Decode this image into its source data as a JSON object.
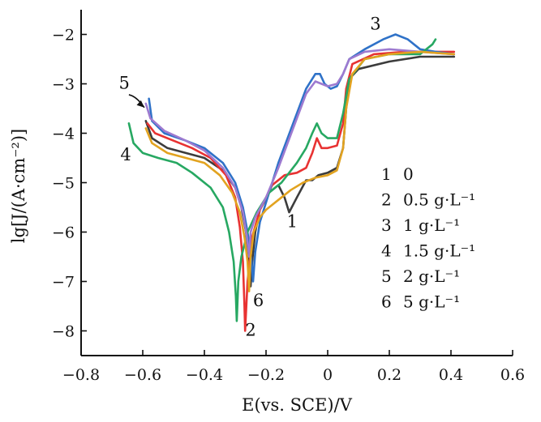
{
  "chart_data": {
    "type": "line",
    "title": "",
    "xlabel": "E(vs. SCE)/V",
    "ylabel": "lg[J/(A·cm⁻²)]",
    "xlim": [
      -0.8,
      0.6
    ],
    "ylim": [
      -8.5,
      -1.5
    ],
    "xticks": [
      -0.8,
      -0.6,
      -0.4,
      -0.2,
      0,
      0.2,
      0.4,
      0.6
    ],
    "xtick_labels": [
      "−0.8",
      "−0.6",
      "−0.4",
      "−0.2",
      "0",
      "0.2",
      "0.4",
      "0.6"
    ],
    "yticks": [
      -2,
      -3,
      -4,
      -5,
      -6,
      -7,
      -8
    ],
    "ytick_labels": [
      "−2",
      "−3",
      "−4",
      "−5",
      "−6",
      "−7",
      "−8"
    ],
    "grid": false,
    "legend": {
      "position": "right",
      "entries": [
        {
          "number": "1",
          "text": "0"
        },
        {
          "number": "2",
          "text": "0.5 g·L⁻¹"
        },
        {
          "number": "3",
          "text": "1 g·L⁻¹"
        },
        {
          "number": "4",
          "text": "1.5 g·L⁻¹"
        },
        {
          "number": "5",
          "text": "2 g·L⁻¹"
        },
        {
          "number": "6",
          "text": "5 g·L⁻¹"
        }
      ]
    },
    "series": [
      {
        "label": "1",
        "color": "#3c3c3c",
        "points": [
          [
            -0.59,
            -3.75
          ],
          [
            -0.57,
            -4.1
          ],
          [
            -0.52,
            -4.3
          ],
          [
            -0.46,
            -4.4
          ],
          [
            -0.4,
            -4.5
          ],
          [
            -0.34,
            -4.75
          ],
          [
            -0.3,
            -5.1
          ],
          [
            -0.28,
            -5.5
          ],
          [
            -0.265,
            -6.0
          ],
          [
            -0.255,
            -6.6
          ],
          [
            -0.25,
            -7.1
          ],
          [
            -0.245,
            -6.6
          ],
          [
            -0.235,
            -6.0
          ],
          [
            -0.22,
            -5.55
          ],
          [
            -0.19,
            -5.2
          ],
          [
            -0.16,
            -5.05
          ],
          [
            -0.14,
            -5.3
          ],
          [
            -0.125,
            -5.6
          ],
          [
            -0.1,
            -5.3
          ],
          [
            -0.07,
            -4.95
          ],
          [
            -0.05,
            -4.95
          ],
          [
            -0.03,
            -4.85
          ],
          [
            0,
            -4.8
          ],
          [
            0.03,
            -4.7
          ],
          [
            0.05,
            -4.3
          ],
          [
            0.06,
            -3.5
          ],
          [
            0.07,
            -2.9
          ],
          [
            0.1,
            -2.7
          ],
          [
            0.2,
            -2.55
          ],
          [
            0.3,
            -2.45
          ],
          [
            0.41,
            -2.45
          ]
        ]
      },
      {
        "label": "2",
        "color": "#e83232",
        "points": [
          [
            -0.585,
            -3.8
          ],
          [
            -0.56,
            -4.0
          ],
          [
            -0.5,
            -4.15
          ],
          [
            -0.44,
            -4.3
          ],
          [
            -0.38,
            -4.5
          ],
          [
            -0.33,
            -4.85
          ],
          [
            -0.3,
            -5.3
          ],
          [
            -0.285,
            -5.9
          ],
          [
            -0.275,
            -6.6
          ],
          [
            -0.27,
            -7.5
          ],
          [
            -0.268,
            -8.0
          ],
          [
            -0.26,
            -7.0
          ],
          [
            -0.245,
            -6.1
          ],
          [
            -0.22,
            -5.55
          ],
          [
            -0.18,
            -5.05
          ],
          [
            -0.14,
            -4.85
          ],
          [
            -0.1,
            -4.8
          ],
          [
            -0.07,
            -4.7
          ],
          [
            -0.05,
            -4.4
          ],
          [
            -0.035,
            -4.1
          ],
          [
            -0.02,
            -4.3
          ],
          [
            0,
            -4.3
          ],
          [
            0.03,
            -4.25
          ],
          [
            0.05,
            -3.8
          ],
          [
            0.06,
            -3.1
          ],
          [
            0.08,
            -2.6
          ],
          [
            0.15,
            -2.4
          ],
          [
            0.25,
            -2.35
          ],
          [
            0.41,
            -2.35
          ]
        ]
      },
      {
        "label": "3",
        "color": "#2f72c8",
        "points": [
          [
            -0.58,
            -3.3
          ],
          [
            -0.57,
            -3.75
          ],
          [
            -0.53,
            -4.0
          ],
          [
            -0.46,
            -4.15
          ],
          [
            -0.4,
            -4.3
          ],
          [
            -0.34,
            -4.6
          ],
          [
            -0.3,
            -5.0
          ],
          [
            -0.275,
            -5.5
          ],
          [
            -0.26,
            -6.0
          ],
          [
            -0.247,
            -6.6
          ],
          [
            -0.242,
            -7.0
          ],
          [
            -0.235,
            -6.4
          ],
          [
            -0.22,
            -5.8
          ],
          [
            -0.19,
            -5.2
          ],
          [
            -0.16,
            -4.6
          ],
          [
            -0.13,
            -4.1
          ],
          [
            -0.1,
            -3.6
          ],
          [
            -0.07,
            -3.1
          ],
          [
            -0.04,
            -2.8
          ],
          [
            -0.025,
            -2.8
          ],
          [
            -0.01,
            -3.0
          ],
          [
            0.01,
            -3.1
          ],
          [
            0.03,
            -3.05
          ],
          [
            0.05,
            -2.8
          ],
          [
            0.07,
            -2.5
          ],
          [
            0.12,
            -2.3
          ],
          [
            0.18,
            -2.1
          ],
          [
            0.22,
            -2.0
          ],
          [
            0.26,
            -2.1
          ],
          [
            0.3,
            -2.3
          ],
          [
            0.35,
            -2.35
          ],
          [
            0.41,
            -2.4
          ]
        ]
      },
      {
        "label": "4",
        "color": "#27a862",
        "points": [
          [
            -0.645,
            -3.8
          ],
          [
            -0.63,
            -4.2
          ],
          [
            -0.6,
            -4.4
          ],
          [
            -0.55,
            -4.5
          ],
          [
            -0.49,
            -4.6
          ],
          [
            -0.44,
            -4.8
          ],
          [
            -0.38,
            -5.1
          ],
          [
            -0.34,
            -5.5
          ],
          [
            -0.32,
            -6.0
          ],
          [
            -0.305,
            -6.6
          ],
          [
            -0.298,
            -7.3
          ],
          [
            -0.295,
            -7.8
          ],
          [
            -0.29,
            -7.0
          ],
          [
            -0.28,
            -6.5
          ],
          [
            -0.26,
            -6.0
          ],
          [
            -0.23,
            -5.6
          ],
          [
            -0.19,
            -5.2
          ],
          [
            -0.15,
            -5.0
          ],
          [
            -0.1,
            -4.6
          ],
          [
            -0.07,
            -4.3
          ],
          [
            -0.05,
            -4.0
          ],
          [
            -0.035,
            -3.8
          ],
          [
            -0.02,
            -4.0
          ],
          [
            0,
            -4.1
          ],
          [
            0.03,
            -4.1
          ],
          [
            0.05,
            -3.6
          ],
          [
            0.07,
            -2.9
          ],
          [
            0.12,
            -2.5
          ],
          [
            0.2,
            -2.4
          ],
          [
            0.3,
            -2.4
          ],
          [
            0.34,
            -2.2
          ],
          [
            0.35,
            -2.1
          ]
        ]
      },
      {
        "label": "5",
        "color": "#9d7ad0",
        "points": [
          [
            -0.59,
            -3.4
          ],
          [
            -0.575,
            -3.7
          ],
          [
            -0.53,
            -3.95
          ],
          [
            -0.46,
            -4.15
          ],
          [
            -0.4,
            -4.35
          ],
          [
            -0.34,
            -4.7
          ],
          [
            -0.3,
            -5.1
          ],
          [
            -0.275,
            -5.6
          ],
          [
            -0.262,
            -6.1
          ],
          [
            -0.255,
            -6.5
          ],
          [
            -0.25,
            -6.0
          ],
          [
            -0.235,
            -5.7
          ],
          [
            -0.2,
            -5.3
          ],
          [
            -0.16,
            -4.7
          ],
          [
            -0.13,
            -4.2
          ],
          [
            -0.1,
            -3.7
          ],
          [
            -0.07,
            -3.2
          ],
          [
            -0.04,
            -2.95
          ],
          [
            -0.02,
            -3.0
          ],
          [
            0,
            -3.05
          ],
          [
            0.03,
            -3.0
          ],
          [
            0.05,
            -2.8
          ],
          [
            0.07,
            -2.5
          ],
          [
            0.12,
            -2.35
          ],
          [
            0.2,
            -2.3
          ],
          [
            0.3,
            -2.35
          ],
          [
            0.41,
            -2.4
          ]
        ]
      },
      {
        "label": "6",
        "color": "#e2a320",
        "points": [
          [
            -0.59,
            -3.9
          ],
          [
            -0.57,
            -4.2
          ],
          [
            -0.52,
            -4.4
          ],
          [
            -0.46,
            -4.5
          ],
          [
            -0.4,
            -4.6
          ],
          [
            -0.35,
            -4.85
          ],
          [
            -0.31,
            -5.2
          ],
          [
            -0.285,
            -5.6
          ],
          [
            -0.27,
            -6.1
          ],
          [
            -0.26,
            -6.6
          ],
          [
            -0.255,
            -7.2
          ],
          [
            -0.25,
            -6.5
          ],
          [
            -0.24,
            -6.0
          ],
          [
            -0.22,
            -5.7
          ],
          [
            -0.2,
            -5.55
          ],
          [
            -0.16,
            -5.35
          ],
          [
            -0.12,
            -5.15
          ],
          [
            -0.08,
            -5.0
          ],
          [
            -0.04,
            -4.9
          ],
          [
            0,
            -4.85
          ],
          [
            0.03,
            -4.75
          ],
          [
            0.05,
            -4.3
          ],
          [
            0.06,
            -3.5
          ],
          [
            0.08,
            -2.8
          ],
          [
            0.12,
            -2.5
          ],
          [
            0.2,
            -2.4
          ],
          [
            0.3,
            -2.35
          ],
          [
            0.41,
            -2.4
          ]
        ]
      }
    ],
    "annotations": [
      {
        "text": "1",
        "x": -0.115,
        "y": -5.9
      },
      {
        "text": "2",
        "x": -0.25,
        "y": -8.1
      },
      {
        "text": "3",
        "x": 0.155,
        "y": -1.9
      },
      {
        "text": "4",
        "x": -0.655,
        "y": -4.55
      },
      {
        "text": "5",
        "x": -0.66,
        "y": -3.1
      },
      {
        "text": "6",
        "x": -0.225,
        "y": -7.5
      }
    ]
  }
}
